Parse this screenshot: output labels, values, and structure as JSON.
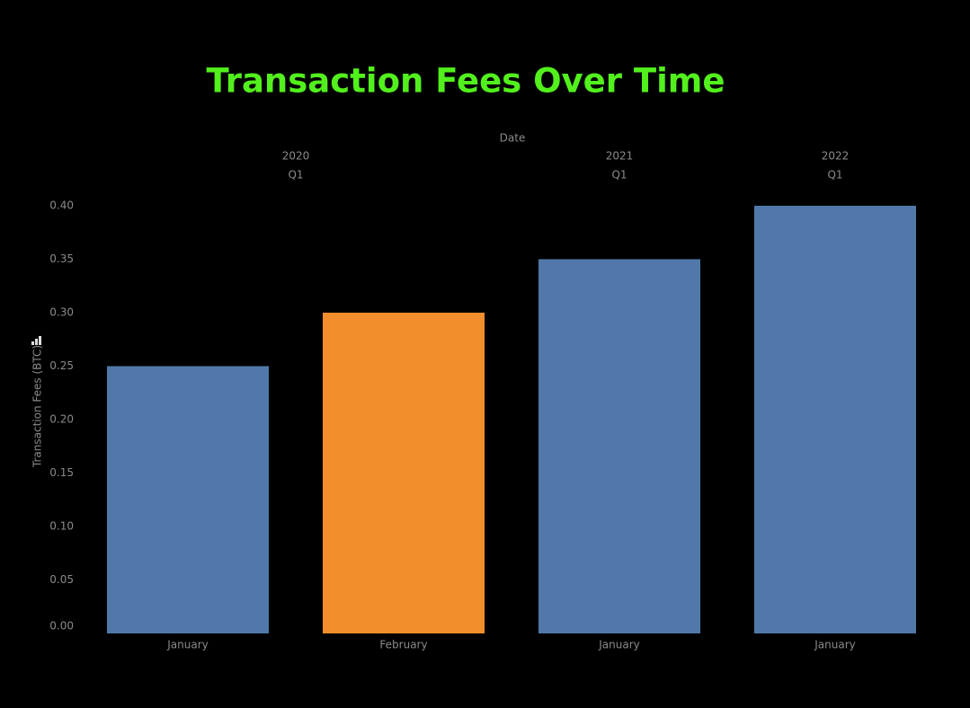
{
  "chart_data": {
    "type": "bar",
    "title": "Transaction Fees Over Time",
    "x_label": "Date",
    "y_label": "Transaction Fees (BTC)",
    "groups": [
      {
        "year": "2020",
        "quarter": "Q1",
        "categories": [
          "January",
          "February"
        ],
        "values": [
          0.25,
          0.3
        ],
        "colors": [
          "#5079a9",
          "#f28e2b"
        ]
      },
      {
        "year": "2021",
        "quarter": "Q1",
        "categories": [
          "January"
        ],
        "values": [
          0.35
        ],
        "colors": [
          "#5079a9"
        ]
      },
      {
        "year": "2022",
        "quarter": "Q1",
        "categories": [
          "January"
        ],
        "values": [
          0.4
        ],
        "colors": [
          "#5079a9"
        ]
      }
    ],
    "ylim": [
      0,
      0.4
    ],
    "yticks": [
      {
        "value": 0,
        "label": "0.00"
      },
      {
        "value": 0.05,
        "label": "0.05"
      },
      {
        "value": 0.1,
        "label": "0.10"
      },
      {
        "value": 0.15,
        "label": "0.15"
      },
      {
        "value": 0.2,
        "label": "0.20"
      },
      {
        "value": 0.25,
        "label": "0.25"
      },
      {
        "value": 0.3,
        "label": "0.30"
      },
      {
        "value": 0.35,
        "label": "0.35"
      },
      {
        "value": 0.4,
        "label": "0.40"
      }
    ],
    "grid": false
  }
}
